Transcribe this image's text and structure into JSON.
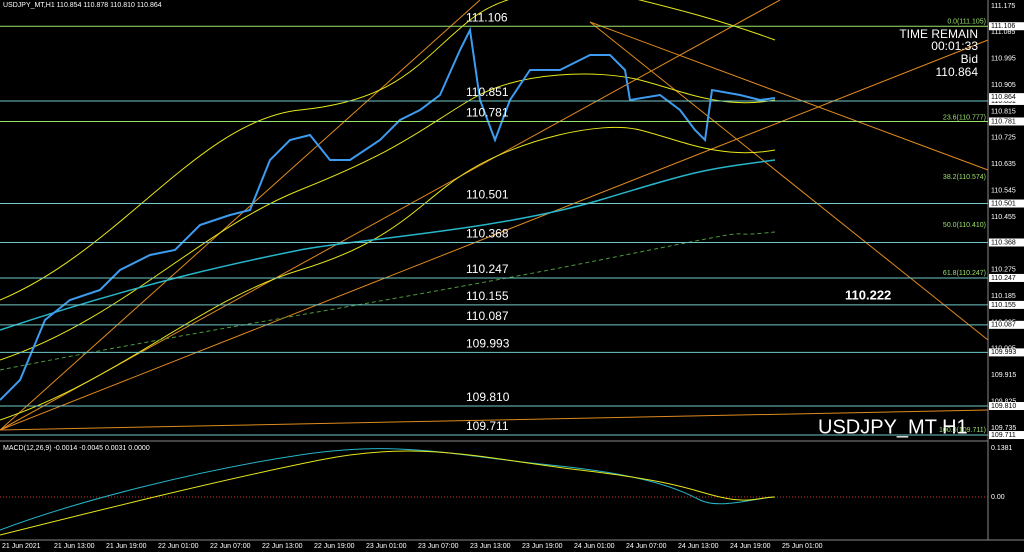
{
  "header": {
    "symbol_info": "USDJPY_MT,H1  110.854 110.878 110.810 110.864"
  },
  "timer": {
    "title": "TIME REMAIN",
    "time": "00:01:33",
    "bid_label": "Bid",
    "bid": "110.864"
  },
  "price_axis": [
    "111.175",
    "111.085",
    "110.995",
    "110.905",
    "110.815",
    "110.725",
    "110.635",
    "110.545",
    "110.455",
    "110.365",
    "110.275",
    "110.185",
    "110.095",
    "110.005",
    "109.915",
    "109.825",
    "109.735"
  ],
  "levels": [
    "111.106",
    "110.851",
    "110.781",
    "110.501",
    "110.368",
    "110.247",
    "110.155",
    "110.087",
    "109.993",
    "109.810",
    "109.711"
  ],
  "bid_box": "110.864",
  "fib_labels": [
    {
      "text": "0.0(111.105)",
      "price": "111.105"
    },
    {
      "text": "23.6(110.777)",
      "price": "110.777"
    },
    {
      "text": "38.2(110.574)",
      "price": "110.574"
    },
    {
      "text": "50.0(110.410)",
      "price": "110.410"
    },
    {
      "text": "61.8(110.247)",
      "price": "110.247"
    },
    {
      "text": "100.0(109.711)",
      "price": "109.711"
    }
  ],
  "target_label": "110.222",
  "watermark": "USDJPY_MT H1",
  "macd": {
    "title": "MACD(12,26,9) -0.0014 -0.0045 0.0031 0.0000",
    "axis": [
      "0.1381",
      "0.00"
    ]
  },
  "time_axis": [
    "21 Jun 2021",
    "21 Jun 13:00",
    "21 Jun 19:00",
    "22 Jun 01:00",
    "22 Jun 07:00",
    "22 Jun 13:00",
    "22 Jun 19:00",
    "23 Jun 01:00",
    "23 Jun 07:00",
    "23 Jun 13:00",
    "23 Jun 19:00",
    "24 Jun 01:00",
    "24 Jun 07:00",
    "24 Jun 13:00",
    "24 Jun 19:00",
    "25 Jun 01:00"
  ]
}
